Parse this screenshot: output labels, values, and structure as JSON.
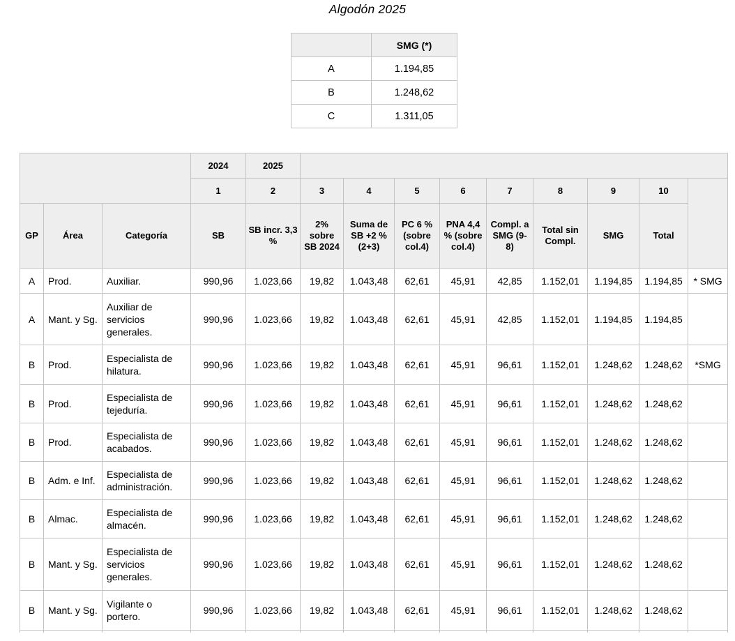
{
  "page": {
    "title": "Algodón 2025"
  },
  "smg_table": {
    "header_label": "SMG (*)",
    "rows": [
      {
        "group": "A",
        "value": "1.194,85"
      },
      {
        "group": "B",
        "value": "1.248,62"
      },
      {
        "group": "C",
        "value": "1.311,05"
      }
    ]
  },
  "main_table": {
    "year_2024": "2024",
    "year_2025": "2025",
    "number_row": [
      "1",
      "2",
      "3",
      "4",
      "5",
      "6",
      "7",
      "8",
      "9",
      "10"
    ],
    "column_headers": [
      "GP",
      "Área",
      "Categoría",
      "SB",
      "SB incr. 3,3 %",
      "2% sobre SB 2024",
      "Suma de SB +2 % (2+3)",
      "PC 6 % (sobre col.4)",
      "PNA 4,4 % (sobre col.4)",
      "Compl. a SMG (9-8)",
      "Total sin Compl.",
      "SMG",
      "Total"
    ],
    "rows": [
      {
        "gp": "A",
        "area": "Prod.",
        "categoria": "Auxiliar.",
        "sb": "990,96",
        "sb_incr": "1.023,66",
        "pct2": "19,82",
        "suma": "1.043,48",
        "pc6": "62,61",
        "pna": "45,91",
        "compl": "42,85",
        "total_sin": "1.152,01",
        "smg": "1.194,85",
        "total": "1.194,85",
        "nota": "* SMG"
      },
      {
        "gp": "A",
        "area": "Mant. y Sg.",
        "categoria": "Auxiliar de servicios generales.",
        "sb": "990,96",
        "sb_incr": "1.023,66",
        "pct2": "19,82",
        "suma": "1.043,48",
        "pc6": "62,61",
        "pna": "45,91",
        "compl": "42,85",
        "total_sin": "1.152,01",
        "smg": "1.194,85",
        "total": "1.194,85",
        "nota": ""
      },
      {
        "gp": "B",
        "area": "Prod.",
        "categoria": "Especialista de hilatura.",
        "sb": "990,96",
        "sb_incr": "1.023,66",
        "pct2": "19,82",
        "suma": "1.043,48",
        "pc6": "62,61",
        "pna": "45,91",
        "compl": "96,61",
        "total_sin": "1.152,01",
        "smg": "1.248,62",
        "total": "1.248,62",
        "nota": "*SMG"
      },
      {
        "gp": "B",
        "area": "Prod.",
        "categoria": "Especialista de tejeduría.",
        "sb": "990,96",
        "sb_incr": "1.023,66",
        "pct2": "19,82",
        "suma": "1.043,48",
        "pc6": "62,61",
        "pna": "45,91",
        "compl": "96,61",
        "total_sin": "1.152,01",
        "smg": "1.248,62",
        "total": "1.248,62",
        "nota": ""
      },
      {
        "gp": "B",
        "area": "Prod.",
        "categoria": "Especialista de acabados.",
        "sb": "990,96",
        "sb_incr": "1.023,66",
        "pct2": "19,82",
        "suma": "1.043,48",
        "pc6": "62,61",
        "pna": "45,91",
        "compl": "96,61",
        "total_sin": "1.152,01",
        "smg": "1.248,62",
        "total": "1.248,62",
        "nota": ""
      },
      {
        "gp": "B",
        "area": "Adm. e Inf.",
        "categoria": "Especialista de administración.",
        "sb": "990,96",
        "sb_incr": "1.023,66",
        "pct2": "19,82",
        "suma": "1.043,48",
        "pc6": "62,61",
        "pna": "45,91",
        "compl": "96,61",
        "total_sin": "1.152,01",
        "smg": "1.248,62",
        "total": "1.248,62",
        "nota": ""
      },
      {
        "gp": "B",
        "area": "Almac.",
        "categoria": "Especialista de almacén.",
        "sb": "990,96",
        "sb_incr": "1.023,66",
        "pct2": "19,82",
        "suma": "1.043,48",
        "pc6": "62,61",
        "pna": "45,91",
        "compl": "96,61",
        "total_sin": "1.152,01",
        "smg": "1.248,62",
        "total": "1.248,62",
        "nota": ""
      },
      {
        "gp": "B",
        "area": "Mant. y Sg.",
        "categoria": "Especialista de servicios generales.",
        "sb": "990,96",
        "sb_incr": "1.023,66",
        "pct2": "19,82",
        "suma": "1.043,48",
        "pc6": "62,61",
        "pna": "45,91",
        "compl": "96,61",
        "total_sin": "1.152,01",
        "smg": "1.248,62",
        "total": "1.248,62",
        "nota": ""
      },
      {
        "gp": "B",
        "area": "Mant. y Sg.",
        "categoria": "Vigilante o portero.",
        "sb": "990,96",
        "sb_incr": "1.023,66",
        "pct2": "19,82",
        "suma": "1.043,48",
        "pc6": "62,61",
        "pna": "45,91",
        "compl": "96,61",
        "total_sin": "1.152,01",
        "smg": "1.248,62",
        "total": "1.248,62",
        "nota": ""
      }
    ]
  }
}
